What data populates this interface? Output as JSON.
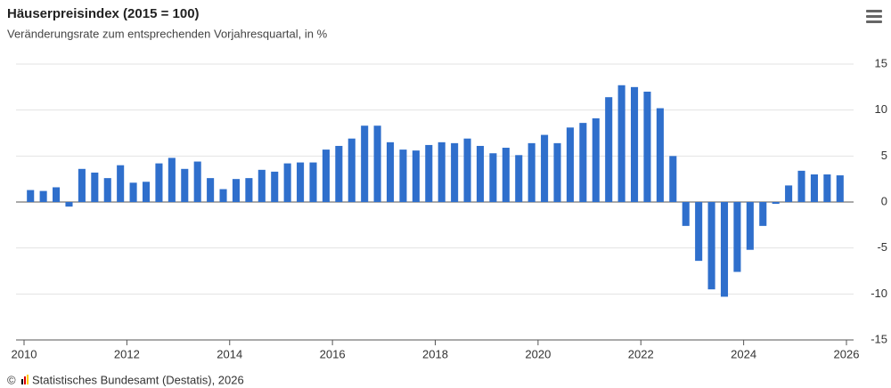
{
  "chart_data": {
    "type": "bar",
    "title": "Häuserpreisindex (2015 = 100)",
    "subtitle": "Veränderungsrate zum entsprechenden Vorjahresquartal, in %",
    "credit": "Statistisches Bundesamt (Destatis), 2026",
    "categories": [
      null,
      null,
      null,
      null,
      null,
      null,
      null,
      null,
      null,
      null,
      null,
      null,
      null,
      null,
      null,
      null,
      null,
      null,
      null,
      null,
      null,
      null,
      null,
      null,
      null,
      null,
      null,
      null,
      null,
      null,
      null,
      null,
      null,
      null,
      null,
      null,
      null,
      null,
      null,
      null,
      null,
      null,
      null,
      null,
      null,
      null,
      null,
      null,
      null,
      null,
      null,
      null,
      null,
      null,
      null,
      null,
      null,
      null,
      null,
      null,
      null,
      null,
      null,
      null
    ],
    "values": [
      1.3,
      1.2,
      1.6,
      -0.5,
      3.6,
      3.2,
      2.6,
      4.0,
      2.1,
      2.2,
      4.2,
      4.8,
      3.6,
      4.4,
      2.6,
      1.4,
      2.5,
      2.6,
      3.5,
      3.3,
      4.2,
      4.3,
      4.3,
      5.7,
      6.1,
      6.9,
      8.3,
      8.3,
      6.5,
      5.7,
      5.6,
      6.2,
      6.5,
      6.4,
      6.9,
      6.1,
      5.3,
      5.9,
      5.1,
      6.4,
      7.3,
      6.4,
      8.1,
      8.6,
      9.1,
      11.4,
      12.7,
      12.5,
      12.0,
      10.2,
      5.0,
      -2.6,
      -6.4,
      -9.5,
      -10.3,
      -7.6,
      -5.2,
      -2.6,
      -0.2,
      1.8,
      3.4,
      3.0,
      3.0,
      2.9
    ],
    "color": "#2f6fcc",
    "xlim": [
      2010,
      2026
    ],
    "xticks": [
      2010,
      2012,
      2014,
      2016,
      2018,
      2020,
      2022,
      2024,
      2026
    ],
    "ylim": [
      -15,
      15
    ],
    "yticks": [
      15,
      10,
      5,
      0,
      -5,
      -10,
      -15
    ],
    "grid": true
  }
}
